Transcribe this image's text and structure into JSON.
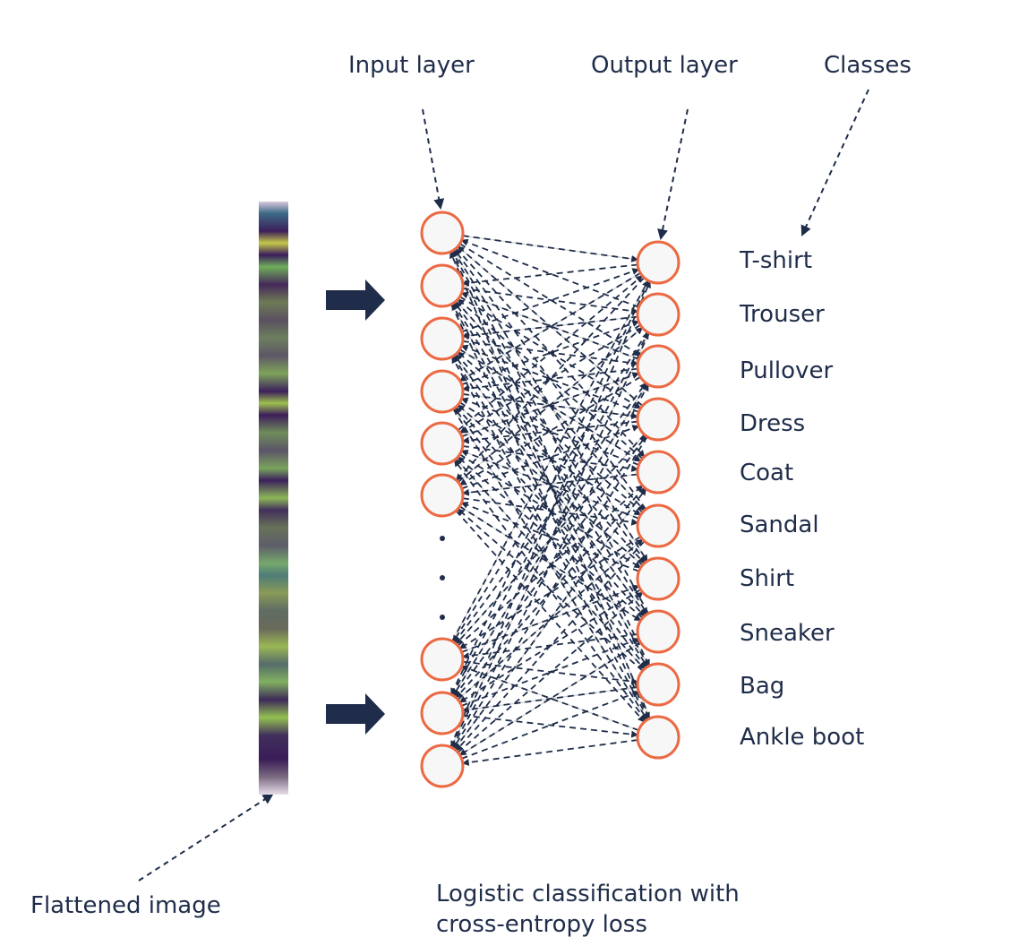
{
  "labels": {
    "input_layer": "Input layer",
    "output_layer": "Output layer",
    "classes": "Classes",
    "flattened_image": "Flattened image",
    "caption_line1": "Logistic classification with",
    "caption_line2": "cross-entropy loss"
  },
  "classes": [
    "T-shirt",
    "Trouser",
    "Pullover",
    "Dress",
    "Coat",
    "Sandal",
    "Shirt",
    "Sneaker",
    "Bag",
    "Ankle boot"
  ],
  "input_nodes_visible": 9,
  "colors": {
    "node_stroke": "#ec6a43",
    "node_fill": "#f7f7f7",
    "edge": "#1f2d4a",
    "faint_edge": "#d0d0d0",
    "text": "#1f2d4a"
  }
}
